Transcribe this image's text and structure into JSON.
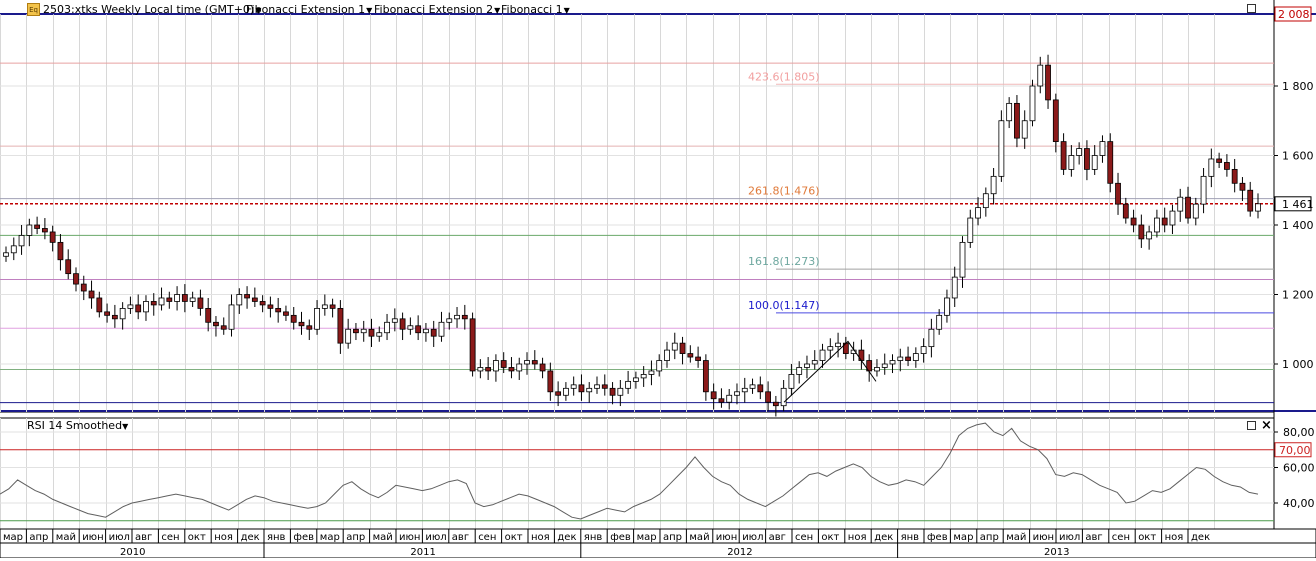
{
  "header": {
    "title_label": "2503:xtks Weekly Local time (GMT+0)",
    "studies": [
      "Fibonacci Extension 1",
      "Fibonacci Extension 2",
      "Fibonacci 1"
    ]
  },
  "price_axis": {
    "ticks": [
      "1 800",
      "1 600",
      "1 400",
      "1 200",
      "1 000"
    ],
    "current_price_label": "1 461",
    "top_price_label": "2 008"
  },
  "fib_levels": [
    {
      "label": "423.6(1.805)",
      "color": "#f2a0a0"
    },
    {
      "label": "261.8(1.476)",
      "color": "#e07a3a"
    },
    {
      "label": "161.8(1.273)",
      "color": "#6fa8a0"
    },
    {
      "label": "100.0(1.147)",
      "color": "#1a1acc"
    }
  ],
  "rsi": {
    "label": "RSI 14 Smoothed",
    "ticks": [
      "80,00",
      "70,00",
      "60,00",
      "40,00"
    ]
  },
  "time_axis": {
    "months": [
      "мар",
      "апр",
      "май",
      "июн",
      "июл",
      "авг",
      "сен",
      "окт",
      "ноя",
      "дек",
      "янв",
      "фев",
      "мар",
      "апр",
      "май",
      "июн",
      "июл",
      "авг",
      "сен",
      "окт",
      "ноя",
      "дек",
      "янв",
      "фев",
      "мар",
      "апр",
      "май",
      "июн",
      "июл",
      "авг",
      "сен",
      "окт",
      "ноя",
      "дек",
      "янв",
      "фев",
      "мар",
      "апр",
      "май",
      "июн",
      "июл",
      "авг",
      "сен",
      "окт",
      "ноя",
      "дек"
    ],
    "years": [
      "2010",
      "2011",
      "2012",
      "2013"
    ]
  },
  "chart_data": {
    "type": "candlestick",
    "title": "2503:xtks Weekly",
    "price_ylim": [
      880,
      2008
    ],
    "rsi_ylim": [
      25,
      88
    ],
    "last_price": 1461,
    "horizontal_levels": [
      2008,
      1866,
      1805,
      1627,
      1476,
      1461,
      1370,
      1273,
      1243,
      1147,
      1103,
      984,
      889
    ],
    "close_series": [
      1320,
      1340,
      1370,
      1400,
      1390,
      1380,
      1350,
      1300,
      1260,
      1230,
      1210,
      1190,
      1150,
      1140,
      1130,
      1160,
      1170,
      1150,
      1180,
      1170,
      1190,
      1180,
      1200,
      1180,
      1190,
      1160,
      1120,
      1110,
      1100,
      1170,
      1200,
      1190,
      1180,
      1170,
      1160,
      1150,
      1140,
      1120,
      1110,
      1100,
      1160,
      1170,
      1160,
      1060,
      1100,
      1090,
      1100,
      1080,
      1090,
      1120,
      1130,
      1100,
      1110,
      1090,
      1100,
      1080,
      1120,
      1130,
      1140,
      1130,
      980,
      990,
      980,
      1010,
      990,
      980,
      1000,
      1010,
      1000,
      980,
      920,
      910,
      930,
      940,
      920,
      930,
      940,
      930,
      910,
      930,
      950,
      960,
      970,
      980,
      1010,
      1040,
      1060,
      1030,
      1020,
      1010,
      920,
      900,
      890,
      910,
      920,
      930,
      940,
      920,
      890,
      880,
      930,
      970,
      990,
      1000,
      1010,
      1040,
      1050,
      1060,
      1030,
      1040,
      1010,
      980,
      990,
      1000,
      1010,
      1020,
      1010,
      1030,
      1050,
      1100,
      1140,
      1190,
      1250,
      1350,
      1420,
      1450,
      1490,
      1540,
      1700,
      1750,
      1650,
      1700,
      1800,
      1860,
      1760,
      1640,
      1560,
      1600,
      1620,
      1560,
      1600,
      1640,
      1520,
      1460,
      1420,
      1400,
      1360,
      1380,
      1420,
      1400,
      1440,
      1480,
      1420,
      1460,
      1540,
      1590,
      1580,
      1560,
      1520,
      1500,
      1440,
      1461
    ],
    "rsi_series": [
      45,
      48,
      53,
      50,
      47,
      45,
      42,
      40,
      38,
      36,
      34,
      33,
      32,
      35,
      38,
      40,
      41,
      42,
      43,
      44,
      45,
      44,
      43,
      42,
      40,
      38,
      36,
      39,
      42,
      44,
      43,
      41,
      40,
      39,
      38,
      37,
      38,
      40,
      45,
      50,
      52,
      48,
      45,
      43,
      46,
      50,
      49,
      48,
      47,
      48,
      50,
      52,
      53,
      51,
      40,
      38,
      39,
      41,
      43,
      45,
      44,
      42,
      40,
      38,
      35,
      32,
      31,
      33,
      35,
      37,
      36,
      35,
      38,
      40,
      42,
      45,
      50,
      55,
      60,
      66,
      60,
      55,
      52,
      50,
      45,
      42,
      40,
      38,
      41,
      44,
      48,
      52,
      56,
      57,
      55,
      58,
      60,
      62,
      60,
      55,
      52,
      50,
      51,
      53,
      52,
      50,
      55,
      60,
      68,
      78,
      82,
      84,
      85,
      80,
      78,
      82,
      75,
      72,
      70,
      65,
      56,
      55,
      57,
      56,
      53,
      50,
      48,
      46,
      40,
      41,
      44,
      47,
      46,
      48,
      52,
      56,
      60,
      59,
      55,
      52,
      50,
      49,
      46,
      45
    ],
    "xlabel": "",
    "ylabel": ""
  }
}
